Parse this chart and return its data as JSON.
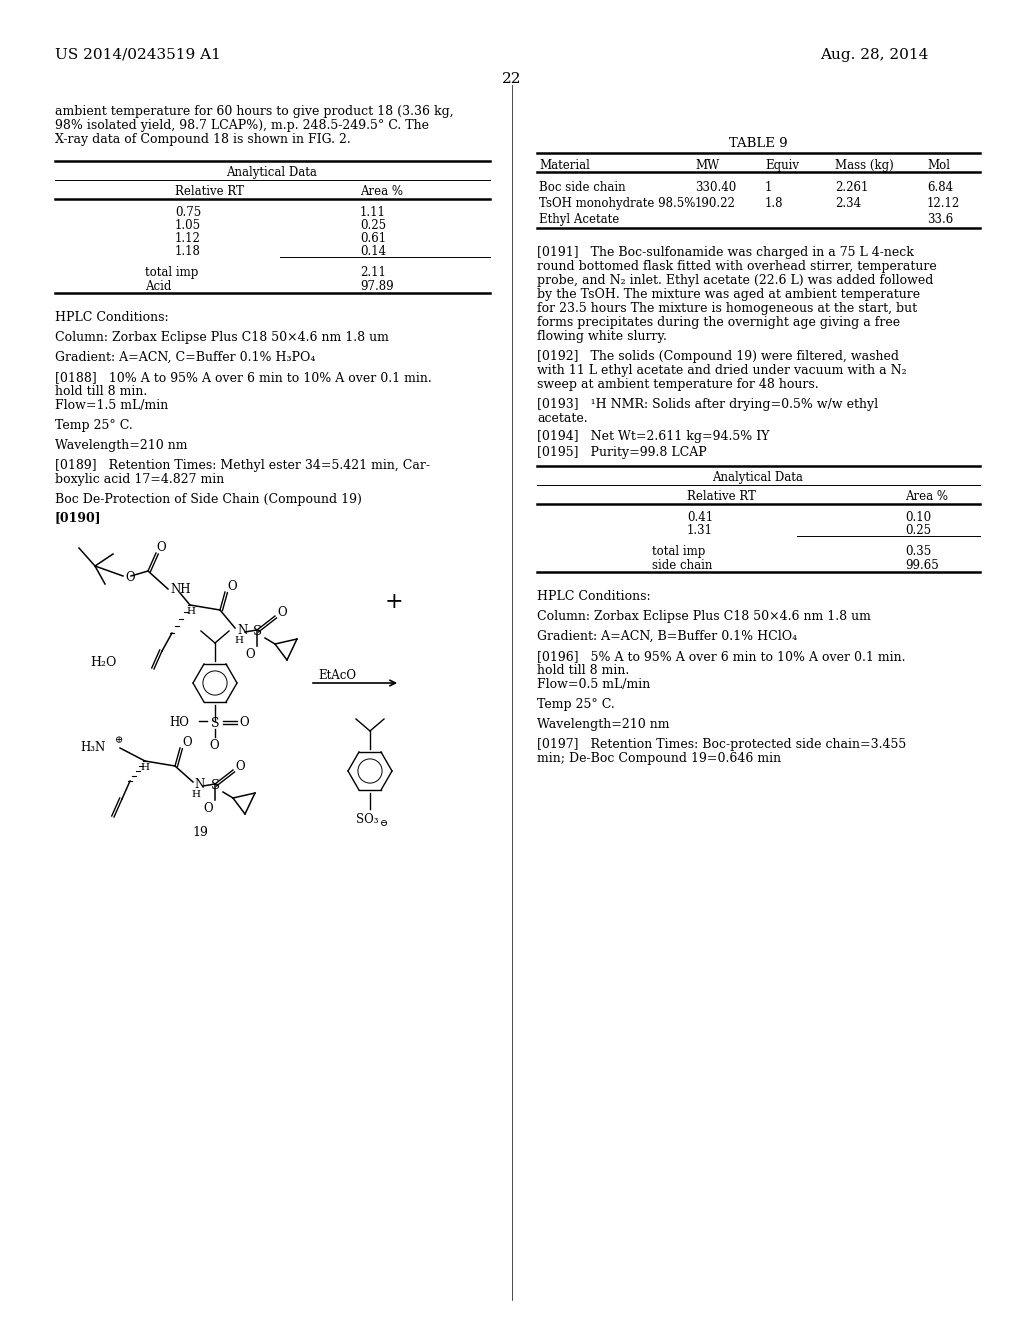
{
  "header_left": "US 2014/0243519 A1",
  "header_right": "Aug. 28, 2014",
  "page_number": "22",
  "left_intro": [
    "ambient temperature for 60 hours to give product 18 (3.36 kg,",
    "98% isolated yield, 98.7 LCAP%), m.p. 248.5-249.5° C. The",
    "X-ray data of Compound 18 is shown in FIG. 2."
  ],
  "anal1_title": "Analytical Data",
  "anal1_h1": "Relative RT",
  "anal1_h2": "Area %",
  "anal1_data": [
    [
      "0.75",
      "1.11"
    ],
    [
      "1.05",
      "0.25"
    ],
    [
      "1.12",
      "0.61"
    ],
    [
      "1.18",
      "0.14"
    ]
  ],
  "anal1_sum": [
    [
      "total imp",
      "2.11"
    ],
    [
      "Acid",
      "97.89"
    ]
  ],
  "hplc1_label": "HPLC Conditions:",
  "hplc1_col": "Column: Zorbax Eclipse Plus C18 50×4.6 nm 1.8 um",
  "hplc1_grad": "Gradient: A=ACN, C=Buffer 0.1% H₃PO₄",
  "hplc1_188a": "[0188]   10% A to 95% A over 6 min to 10% A over 0.1 min.",
  "hplc1_188b": "hold till 8 min.",
  "hplc1_flow": "Flow=1.5 mL/min",
  "hplc1_temp": "Temp 25° C.",
  "hplc1_wave": "Wavelength=210 nm",
  "hplc1_189a": "[0189]   Retention Times: Methyl ester 34=5.421 min, Car-",
  "hplc1_189b": "boxylic acid 17=4.827 min",
  "boc_label": "Boc De-Protection of Side Chain (Compound 19)",
  "p190": "[0190]",
  "t9_title": "TABLE 9",
  "t9_headers": [
    "Material",
    "MW",
    "Equiv",
    "Mass (kg)",
    "Mol"
  ],
  "t9_data": [
    [
      "Boc side chain",
      "330.40",
      "1",
      "2.261",
      "6.84"
    ],
    [
      "TsOH monohydrate 98.5%",
      "190.22",
      "1.8",
      "2.34",
      "12.12"
    ],
    [
      "Ethyl Acetate",
      "",
      "",
      "",
      "33.6"
    ]
  ],
  "p191": [
    "[0191]   The Boc-sulfonamide was charged in a 75 L 4-neck",
    "round bottomed flask fitted with overhead stirrer, temperature",
    "probe, and N₂ inlet. Ethyl acetate (22.6 L) was added followed",
    "by the TsOH. The mixture was aged at ambient temperature",
    "for 23.5 hours The mixture is homogeneous at the start, but",
    "forms precipitates during the overnight age giving a free",
    "flowing white slurry."
  ],
  "p192": [
    "[0192]   The solids (Compound 19) were filtered, washed",
    "with 11 L ethyl acetate and dried under vacuum with a N₂",
    "sweep at ambient temperature for 48 hours."
  ],
  "p193": [
    "[0193]   ¹H NMR: Solids after drying=0.5% w/w ethyl",
    "acetate."
  ],
  "p194": "[0194]   Net Wt=2.611 kg=94.5% IY",
  "p195": "[0195]   Purity=99.8 LCAP",
  "anal2_title": "Analytical Data",
  "anal2_h1": "Relative RT",
  "anal2_h2": "Area %",
  "anal2_data": [
    [
      "0.41",
      "0.10"
    ],
    [
      "1.31",
      "0.25"
    ]
  ],
  "anal2_sum": [
    [
      "total imp",
      "0.35"
    ],
    [
      "side chain",
      "99.65"
    ]
  ],
  "hplc2_label": "HPLC Conditions:",
  "hplc2_col": "Column: Zorbax Eclipse Plus C18 50×4.6 nm 1.8 um",
  "hplc2_grad": "Gradient: A=ACN, B=Buffer 0.1% HClO₄",
  "hplc2_196a": "[0196]   5% A to 95% A over 6 min to 10% A over 0.1 min.",
  "hplc2_196b": "hold till 8 min.",
  "hplc2_flow": "Flow=0.5 mL/min",
  "hplc2_temp": "Temp 25° C.",
  "hplc2_wave": "Wavelength=210 nm",
  "hplc2_197a": "[0197]   Retention Times: Boc-protected side chain=3.455",
  "hplc2_197b": "min; De-Boc Compound 19=0.646 min"
}
